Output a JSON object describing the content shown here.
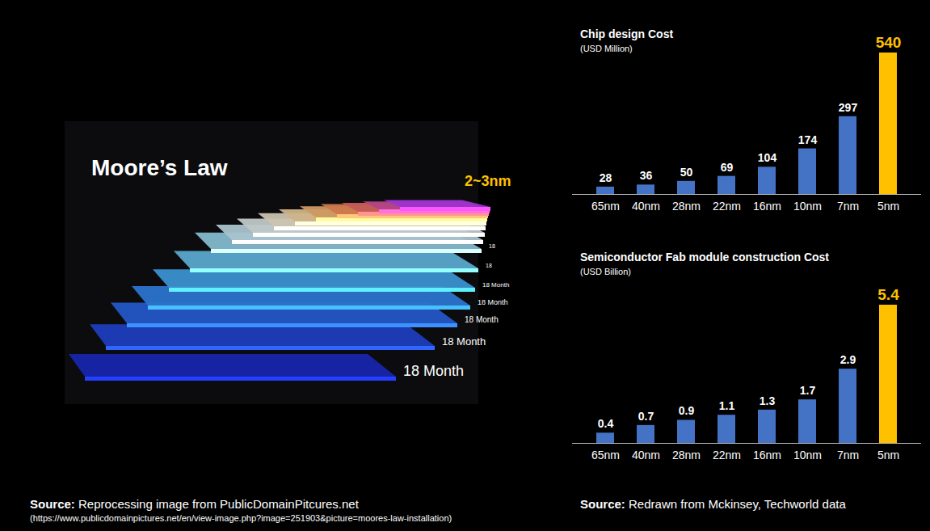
{
  "chart_data": [
    {
      "type": "bar",
      "title": "Chip design Cost",
      "subtitle": "(USD Million)",
      "categories": [
        "65nm",
        "40nm",
        "28nm",
        "22nm",
        "16nm",
        "10nm",
        "7nm",
        "5nm"
      ],
      "values": [
        28,
        36,
        50,
        69,
        104,
        174,
        297,
        540
      ],
      "colors": [
        "#4472c4",
        "#4472c4",
        "#4472c4",
        "#4472c4",
        "#4472c4",
        "#4472c4",
        "#4472c4",
        "#ffc000"
      ],
      "ylim": [
        0,
        540
      ],
      "data_labels": true,
      "tick_labels": "x"
    },
    {
      "type": "bar",
      "title": "Semiconductor Fab module construction Cost",
      "subtitle": "(USD Billion)",
      "categories": [
        "65nm",
        "40nm",
        "28nm",
        "22nm",
        "16nm",
        "10nm",
        "7nm",
        "5nm"
      ],
      "values": [
        0.4,
        0.7,
        0.9,
        1.1,
        1.3,
        1.7,
        2.9,
        5.4
      ],
      "colors": [
        "#4472c4",
        "#4472c4",
        "#4472c4",
        "#4472c4",
        "#4472c4",
        "#4472c4",
        "#4472c4",
        "#ffc000"
      ],
      "ylim": [
        0,
        5.4
      ],
      "data_labels": true,
      "tick_labels": "x"
    }
  ],
  "illustration": {
    "title": "Moore’s Law",
    "highlight": "2~3nm",
    "step_labels": [
      "18 Month",
      "18 Month",
      "18 Month",
      "18 Month",
      "18 Month",
      "18",
      "18"
    ]
  },
  "sources": [
    {
      "label": "Source:",
      "text": "Reprocessing image from PublicDomainPitcures.net",
      "url": "(https://www.publicdomainpictures.net/en/view-image.php?image=251903&picture=moores-law-installation)"
    },
    {
      "label": "Source:",
      "text": "Redrawn from Mckinsey, Techworld data"
    }
  ]
}
